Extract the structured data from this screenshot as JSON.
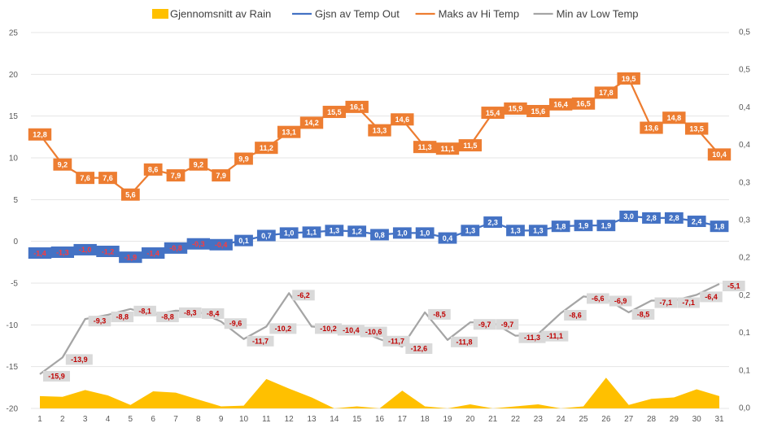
{
  "chart_data": {
    "type": "line",
    "x": [
      1,
      2,
      3,
      4,
      5,
      6,
      7,
      8,
      9,
      10,
      11,
      12,
      13,
      14,
      15,
      16,
      17,
      18,
      19,
      20,
      21,
      22,
      23,
      24,
      25,
      26,
      27,
      28,
      29,
      30,
      31
    ],
    "y_left": {
      "min": -20,
      "max": 25,
      "step": 5,
      "ticks": [
        "25",
        "20",
        "15",
        "10",
        "5",
        "0",
        "-5",
        "-10",
        "-15",
        "-20"
      ]
    },
    "y_right": {
      "min": 0,
      "max": 0.55,
      "ticks": [
        "0,5",
        "0,5",
        "0,4",
        "0,4",
        "0,3",
        "0,3",
        "0,2",
        "0,2",
        "0,1",
        "0,1",
        "0,0"
      ]
    },
    "legend_position": "top",
    "grid": true,
    "series": [
      {
        "name": "Gjennomsnitt av Rain",
        "kind": "area",
        "axis": "right",
        "color": "#FFC000",
        "values": [
          0.018,
          0.017,
          0.027,
          0.019,
          0.005,
          0.025,
          0.023,
          0.013,
          0.003,
          0.004,
          0.043,
          0.029,
          0.016,
          0.0,
          0.003,
          0.0,
          0.026,
          0.003,
          0.0,
          0.006,
          0.0,
          0.003,
          0.006,
          0.0,
          0.003,
          0.045,
          0.005,
          0.014,
          0.016,
          0.028,
          0.018
        ]
      },
      {
        "name": "Gjsn av Temp Out",
        "kind": "line",
        "axis": "left",
        "color": "#4472C4",
        "values": [
          -1.4,
          -1.3,
          -1.0,
          -1.2,
          -1.9,
          -1.4,
          -0.8,
          -0.3,
          -0.4,
          0.1,
          0.7,
          1.0,
          1.1,
          1.3,
          1.2,
          0.8,
          1.0,
          1.0,
          0.4,
          1.3,
          2.3,
          1.3,
          1.3,
          1.8,
          1.9,
          1.9,
          3.0,
          2.8,
          2.8,
          2.4,
          1.8
        ],
        "labels": [
          "-1,4",
          "-1,3",
          "-1,0",
          "-1,2",
          "-1,9",
          "-1,4",
          "-0,8",
          "-0,3",
          "-0,4",
          "0,1",
          "0,7",
          "1,0",
          "1,1",
          "1,3",
          "1,2",
          "0,8",
          "1,0",
          "1,0",
          "0,4",
          "1,3",
          "2,3",
          "1,3",
          "1,3",
          "1,8",
          "1,9",
          "1,9",
          "3,0",
          "2,8",
          "2,8",
          "2,4",
          "1,8"
        ]
      },
      {
        "name": "Maks av Hi Temp",
        "kind": "line",
        "axis": "left",
        "color": "#ED7D31",
        "values": [
          12.8,
          9.2,
          7.6,
          7.6,
          5.6,
          8.6,
          7.9,
          9.2,
          7.9,
          9.9,
          11.2,
          13.1,
          14.2,
          15.5,
          16.1,
          13.3,
          14.6,
          11.3,
          11.1,
          11.5,
          15.4,
          15.9,
          15.6,
          16.4,
          16.5,
          17.8,
          19.5,
          13.6,
          14.8,
          13.5,
          10.4
        ],
        "labels": [
          "12,8",
          "9,2",
          "7,6",
          "7,6",
          "5,6",
          "8,6",
          "7,9",
          "9,2",
          "7,9",
          "9,9",
          "11,2",
          "13,1",
          "14,2",
          "15,5",
          "16,1",
          "13,3",
          "14,6",
          "11,3",
          "11,1",
          "11,5",
          "15,4",
          "15,9",
          "15,6",
          "16,4",
          "16,5",
          "17,8",
          "19,5",
          "13,6",
          "14,8",
          "13,5",
          "10,4"
        ]
      },
      {
        "name": "Min av Low Temp",
        "kind": "line",
        "axis": "left",
        "color": "#A5A5A5",
        "values": [
          -15.9,
          -13.9,
          -9.3,
          -8.8,
          -8.1,
          -8.8,
          -8.3,
          -8.4,
          -9.6,
          -11.7,
          -10.2,
          -6.2,
          -10.2,
          -10.4,
          -10.6,
          -11.7,
          -12.6,
          -8.5,
          -11.8,
          -9.7,
          -9.7,
          -11.3,
          -11.1,
          -8.6,
          -6.6,
          -6.9,
          -8.5,
          -7.1,
          -7.1,
          -6.4,
          -5.1
        ],
        "labels": [
          "-15,9",
          "-13,9",
          "-9,3",
          "-8,8",
          "-8,1",
          "-8,8",
          "-8,3",
          "-8,4",
          "-9,6",
          "-11,7",
          "-10,2",
          "-6,2",
          "-10,2",
          "-10,4",
          "-10,6",
          "-11,7",
          "-12,6",
          "-8,5",
          "-11,8",
          "-9,7",
          "-9,7",
          "-11,3",
          "-11,1",
          "-8,6",
          "-6,6",
          "-6,9",
          "-8,5",
          "-7,1",
          "-7,1",
          "-6,4",
          "-5,1"
        ]
      }
    ]
  }
}
